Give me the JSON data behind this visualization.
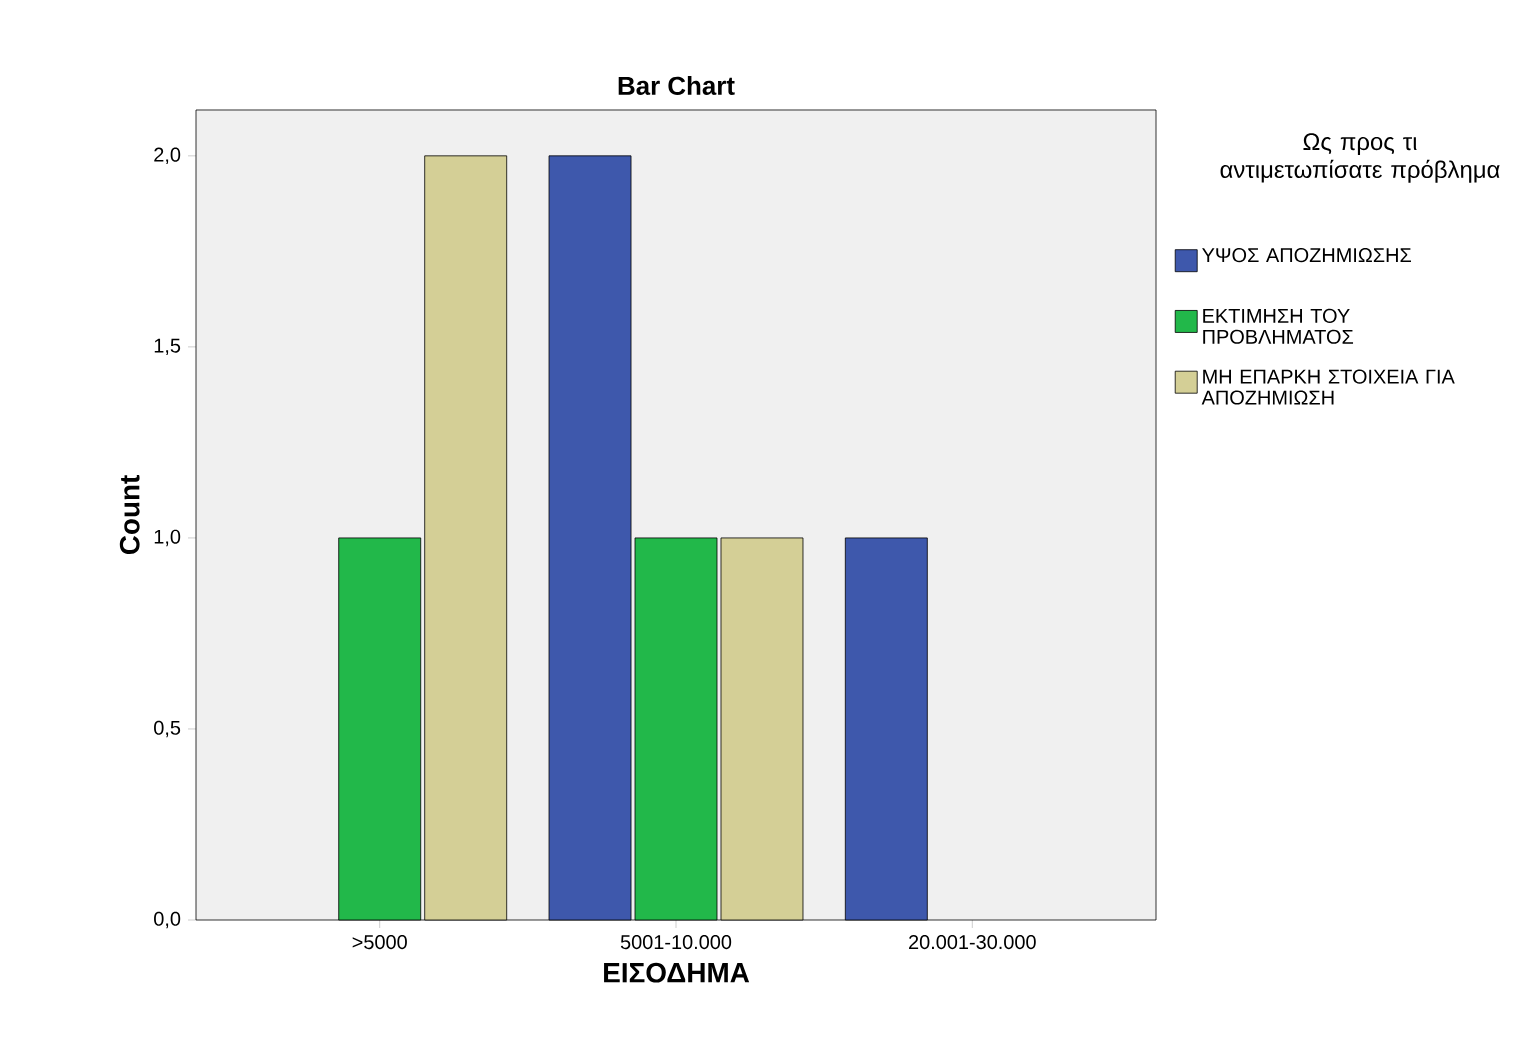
{
  "chart_data": {
    "type": "bar",
    "title": "Bar Chart",
    "xlabel": "ΕΙΣΟΔΗΜΑ",
    "ylabel": "Count",
    "legend_title": "Ως προς τι αντιμετωπίσατε πρόβλημα",
    "categories": [
      ">5000",
      "5001-10.000",
      "20.001-30.000"
    ],
    "series": [
      {
        "name": "ΥΨΟΣ ΑΠΟΖΗΜΙΩΣΗΣ",
        "color": "#3e58ac",
        "values": [
          null,
          2,
          1
        ]
      },
      {
        "name": "ΕΚΤΙΜΗΣΗ ΤΟΥ ΠΡΟΒΛΗΜΑΤΟΣ",
        "color": "#22b84a",
        "values": [
          1,
          1,
          null
        ]
      },
      {
        "name": "ΜΗ ΕΠΑΡΚΗ ΣΤΟΙΧΕΙΑ ΓΙΑ ΑΠΟΖΗΜΙΩΣΗ",
        "color": "#d4cf96",
        "values": [
          2,
          1,
          null
        ]
      }
    ],
    "ylim": [
      0,
      2.12
    ],
    "yticks": [
      {
        "value": 0,
        "label": "0,0"
      },
      {
        "value": 0.5,
        "label": "0,5"
      },
      {
        "value": 1,
        "label": "1,0"
      },
      {
        "value": 1.5,
        "label": "1,5"
      },
      {
        "value": 2,
        "label": "2,0"
      }
    ],
    "grid": false,
    "legend": "right"
  }
}
